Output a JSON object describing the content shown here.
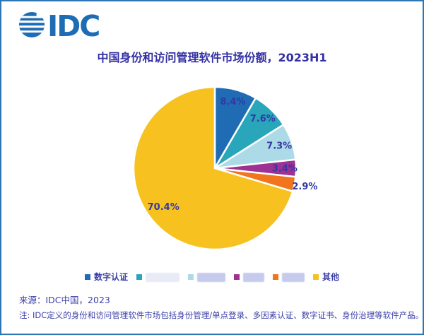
{
  "header": {
    "logo_text": "IDC"
  },
  "title": "中国身份和访问管理软件市场份额，2023H1",
  "chart_data": {
    "type": "pie",
    "title": "中国身份和访问管理软件市场份额，2023H1",
    "unit": "percent",
    "start_angle_deg": 0,
    "direction": "clockwise",
    "legend_position": "bottom",
    "slices": [
      {
        "label": "数字认证",
        "value": 8.4,
        "data_label": "8.4%",
        "color": "#1f6cb5",
        "redacted": false
      },
      {
        "label": "",
        "value": 7.6,
        "data_label": "7.6%",
        "color": "#29a6ba",
        "redacted": true
      },
      {
        "label": "",
        "value": 7.3,
        "data_label": "7.3%",
        "color": "#acdae7",
        "redacted": true
      },
      {
        "label": "",
        "value": 3.4,
        "data_label": "3.4%",
        "color": "#9e3194",
        "redacted": true
      },
      {
        "label": "",
        "value": 2.9,
        "data_label": "2.9%",
        "color": "#f0751d",
        "redacted": true
      },
      {
        "label": "其他",
        "value": 70.4,
        "data_label": "70.4%",
        "color": "#f7c220",
        "redacted": false
      }
    ],
    "label_radius_factor": [
      0.85,
      0.85,
      0.84,
      0.86,
      1.13,
      0.79
    ]
  },
  "footer": {
    "source": "来源：IDC中国，2023",
    "note": "注: IDC定义的身份和访问管理软件市场包括身份管理/单点登录、多因素认证、数字证书、身份治理等软件产品。"
  },
  "colors": {
    "accent_blue": "#1e6cb5",
    "frame_border": "#2e75b6",
    "text_navy": "#3b3fa8"
  }
}
